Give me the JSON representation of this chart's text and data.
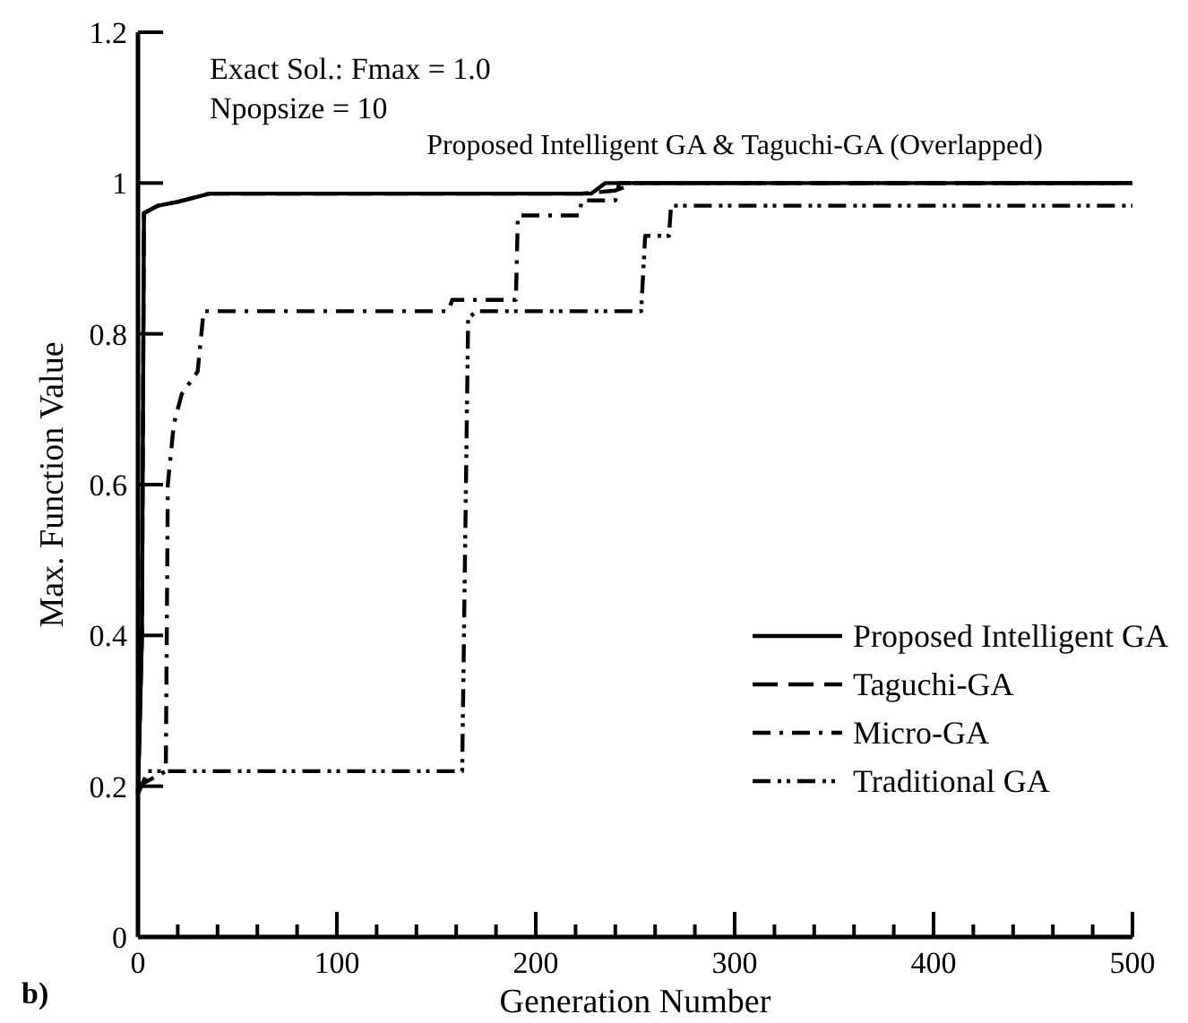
{
  "chart_data": {
    "type": "line",
    "xlabel": "Generation Number",
    "ylabel": "Max. Function Value",
    "xlim": [
      0,
      500
    ],
    "ylim": [
      0,
      1.2
    ],
    "xticks": [
      0,
      {
        "value": 20,
        "label": null
      },
      {
        "value": 40,
        "label": null
      },
      {
        "value": 60,
        "label": null
      },
      {
        "value": 80,
        "label": null
      },
      100,
      {
        "value": 120,
        "label": null
      },
      {
        "value": 140,
        "label": null
      },
      {
        "value": 160,
        "label": null
      },
      {
        "value": 180,
        "label": null
      },
      200,
      {
        "value": 220,
        "label": null
      },
      {
        "value": 240,
        "label": null
      },
      {
        "value": 260,
        "label": null
      },
      {
        "value": 280,
        "label": null
      },
      300,
      {
        "value": 320,
        "label": null
      },
      {
        "value": 340,
        "label": null
      },
      {
        "value": 360,
        "label": null
      },
      {
        "value": 380,
        "label": null
      },
      400,
      {
        "value": 420,
        "label": null
      },
      {
        "value": 440,
        "label": null
      },
      {
        "value": 460,
        "label": null
      },
      {
        "value": 480,
        "label": null
      },
      500
    ],
    "yticks": [
      0,
      0.2,
      0.4,
      0.6,
      0.8,
      1,
      1.2
    ],
    "grid": false,
    "legend": "bottom right",
    "marker": "none",
    "annotations": [
      "Exact Sol.: Fmax = 1.0",
      "Npopsize = 10",
      {
        "text": "Proposed Intelligent GA & Taguchi-GA (Overlapped)",
        "x": 300,
        "y": 1.0
      },
      "b)"
    ],
    "series": [
      {
        "name": "Proposed Intelligent GA",
        "color": "#000000",
        "line_style": "solid",
        "x": [
          0,
          2,
          3,
          10,
          20,
          36,
          228,
          235,
          500
        ],
        "values": [
          0.19,
          0.4,
          0.96,
          0.97,
          0.975,
          0.986,
          0.986,
          1.0,
          1.0
        ]
      },
      {
        "name": "Taguchi-GA",
        "color": "#000000",
        "line_style": "dashed",
        "x": [
          0,
          2,
          3,
          10,
          20,
          36,
          223,
          240,
          250,
          500
        ],
        "values": [
          0.19,
          0.4,
          0.96,
          0.97,
          0.975,
          0.986,
          0.986,
          0.99,
          1.0,
          1.0
        ]
      },
      {
        "name": "Micro-GA",
        "color": "#000000",
        "line_style": "dashdot",
        "x": [
          0,
          14,
          15,
          18,
          22,
          30,
          33,
          156,
          158,
          190,
          191,
          222,
          223,
          240,
          242,
          500
        ],
        "values": [
          0.2,
          0.22,
          0.6,
          0.68,
          0.72,
          0.75,
          0.83,
          0.83,
          0.845,
          0.845,
          0.957,
          0.957,
          0.977,
          0.977,
          1.0,
          1.0
        ]
      },
      {
        "name": "Traditional GA",
        "color": "#000000",
        "line_style": "dashdotdot",
        "x": [
          0,
          5,
          163,
          166,
          170,
          253,
          255,
          267,
          268,
          500
        ],
        "values": [
          0.19,
          0.22,
          0.22,
          0.82,
          0.83,
          0.83,
          0.93,
          0.93,
          0.97,
          0.97
        ]
      }
    ]
  }
}
